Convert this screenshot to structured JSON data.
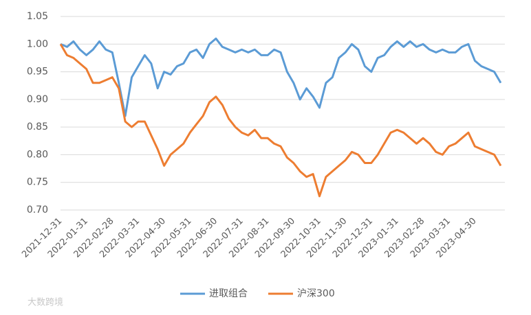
{
  "chart_data": {
    "type": "line",
    "categories": [
      "2021-12-31",
      null,
      null,
      null,
      "2022-01-31",
      null,
      null,
      null,
      "2022-02-28",
      null,
      null,
      null,
      "2022-03-31",
      null,
      null,
      null,
      "2022-04-30",
      null,
      null,
      null,
      "2022-05-31",
      null,
      null,
      null,
      "2022-06-30",
      null,
      null,
      null,
      "2022-07-31",
      null,
      null,
      null,
      "2022-08-31",
      null,
      null,
      null,
      "2022-09-30",
      null,
      null,
      null,
      "2022-10-31",
      null,
      null,
      null,
      "2022-11-30",
      null,
      null,
      null,
      "2022-12-31",
      null,
      null,
      null,
      "2023-01-31",
      null,
      null,
      null,
      "2023-02-28",
      null,
      null,
      null,
      "2023-03-31",
      null,
      null,
      null,
      "2023-04-30",
      null,
      null,
      null,
      null
    ],
    "series": [
      {
        "name": "进取组合",
        "color": "#5b9bd5",
        "values": [
          1.0,
          0.995,
          1.005,
          0.99,
          0.98,
          0.99,
          1.005,
          0.99,
          0.985,
          0.93,
          0.87,
          0.94,
          0.96,
          0.98,
          0.965,
          0.92,
          0.95,
          0.945,
          0.96,
          0.965,
          0.985,
          0.99,
          0.975,
          1.0,
          1.01,
          0.995,
          0.99,
          0.985,
          0.99,
          0.985,
          0.99,
          0.98,
          0.98,
          0.99,
          0.985,
          0.95,
          0.93,
          0.9,
          0.92,
          0.905,
          0.885,
          0.93,
          0.94,
          0.975,
          0.985,
          1.0,
          0.99,
          0.96,
          0.95,
          0.975,
          0.98,
          0.995,
          1.005,
          0.995,
          1.005,
          0.995,
          1.0,
          0.99,
          0.985,
          0.99,
          0.985,
          0.985,
          0.995,
          1.0,
          0.97,
          0.96,
          0.955,
          0.95,
          0.93
        ]
      },
      {
        "name": "沪深300",
        "color": "#ed7d31",
        "values": [
          1.0,
          0.98,
          0.975,
          0.965,
          0.955,
          0.93,
          0.93,
          0.935,
          0.94,
          0.92,
          0.86,
          0.85,
          0.86,
          0.86,
          0.835,
          0.81,
          0.78,
          0.8,
          0.81,
          0.82,
          0.84,
          0.855,
          0.87,
          0.895,
          0.905,
          0.89,
          0.865,
          0.85,
          0.84,
          0.835,
          0.845,
          0.83,
          0.83,
          0.82,
          0.815,
          0.795,
          0.785,
          0.77,
          0.76,
          0.765,
          0.725,
          0.76,
          0.77,
          0.78,
          0.79,
          0.805,
          0.8,
          0.785,
          0.785,
          0.8,
          0.82,
          0.84,
          0.845,
          0.84,
          0.83,
          0.82,
          0.83,
          0.82,
          0.805,
          0.8,
          0.815,
          0.82,
          0.83,
          0.84,
          0.815,
          0.81,
          0.805,
          0.8,
          0.78
        ]
      }
    ],
    "ylim": [
      0.7,
      1.05
    ],
    "yticks": [
      {
        "value": 0.7,
        "label": "0.70"
      },
      0.75,
      {
        "value": 0.8,
        "label": "0.80"
      },
      0.85,
      {
        "value": 0.9,
        "label": "0.90"
      },
      0.95,
      {
        "value": 1.0,
        "label": "1.00"
      },
      1.05
    ],
    "grid": true,
    "legend": "bottom"
  },
  "watermark": "大数跨境"
}
